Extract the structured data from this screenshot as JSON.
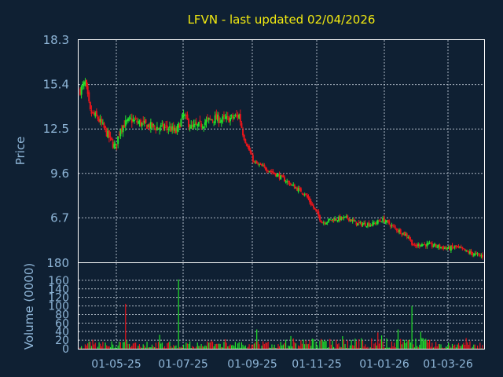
{
  "title": "LFVN - last updated 02/04/2026",
  "colors": {
    "background": "#0f2033",
    "up": "#22e12a",
    "down": "#e8151b",
    "text": "#8fb6d8",
    "title": "#f2ea10"
  },
  "chart_data": [
    {
      "type": "candlestick",
      "ylabel": "Price",
      "ylim": [
        3.8,
        18.3
      ],
      "yticks": [
        "18.3",
        "15.4",
        "12.5",
        "9.6",
        "6.7"
      ],
      "xticks": [
        "01-05-25",
        "01-07-25",
        "01-09-25",
        "01-11-25",
        "01-01-26",
        "01-03-26"
      ],
      "grid": true,
      "close_path": [
        [
          0,
          15.0
        ],
        [
          4,
          15.5
        ],
        [
          8,
          13.6
        ],
        [
          14,
          13.2
        ],
        [
          20,
          12.4
        ],
        [
          26,
          11.5
        ],
        [
          28,
          11.3
        ],
        [
          32,
          12.6
        ],
        [
          40,
          13.1
        ],
        [
          50,
          12.8
        ],
        [
          60,
          12.6
        ],
        [
          70,
          12.6
        ],
        [
          76,
          12.3
        ],
        [
          82,
          13.4
        ],
        [
          88,
          12.6
        ],
        [
          94,
          12.7
        ],
        [
          100,
          13.0
        ],
        [
          106,
          13.2
        ],
        [
          112,
          13.1
        ],
        [
          120,
          13.2
        ],
        [
          126,
          13.4
        ],
        [
          130,
          11.9
        ],
        [
          138,
          10.3
        ],
        [
          150,
          9.8
        ],
        [
          160,
          9.3
        ],
        [
          170,
          8.7
        ],
        [
          178,
          8.3
        ],
        [
          184,
          7.5
        ],
        [
          192,
          6.4
        ],
        [
          200,
          6.6
        ],
        [
          212,
          6.7
        ],
        [
          220,
          6.3
        ],
        [
          232,
          6.3
        ],
        [
          240,
          6.6
        ],
        [
          250,
          6.0
        ],
        [
          260,
          5.5
        ],
        [
          265,
          4.8
        ],
        [
          270,
          5.0
        ],
        [
          280,
          4.9
        ],
        [
          292,
          4.7
        ],
        [
          298,
          4.8
        ],
        [
          306,
          4.5
        ],
        [
          314,
          4.3
        ],
        [
          319,
          4.2
        ]
      ]
    },
    {
      "type": "bar",
      "ylabel": "Volume (0000)",
      "ylim": [
        0,
        180
      ],
      "yticks": [
        "180",
        "160",
        "140",
        "120",
        "100",
        "80",
        "60",
        "40",
        "20",
        "0"
      ],
      "grid": true,
      "spikes": [
        [
          36,
          105
        ],
        [
          78,
          162
        ],
        [
          140,
          45
        ],
        [
          252,
          45
        ],
        [
          263,
          100
        ],
        [
          236,
          38
        ],
        [
          270,
          40
        ]
      ],
      "baseline_max": 25
    }
  ]
}
